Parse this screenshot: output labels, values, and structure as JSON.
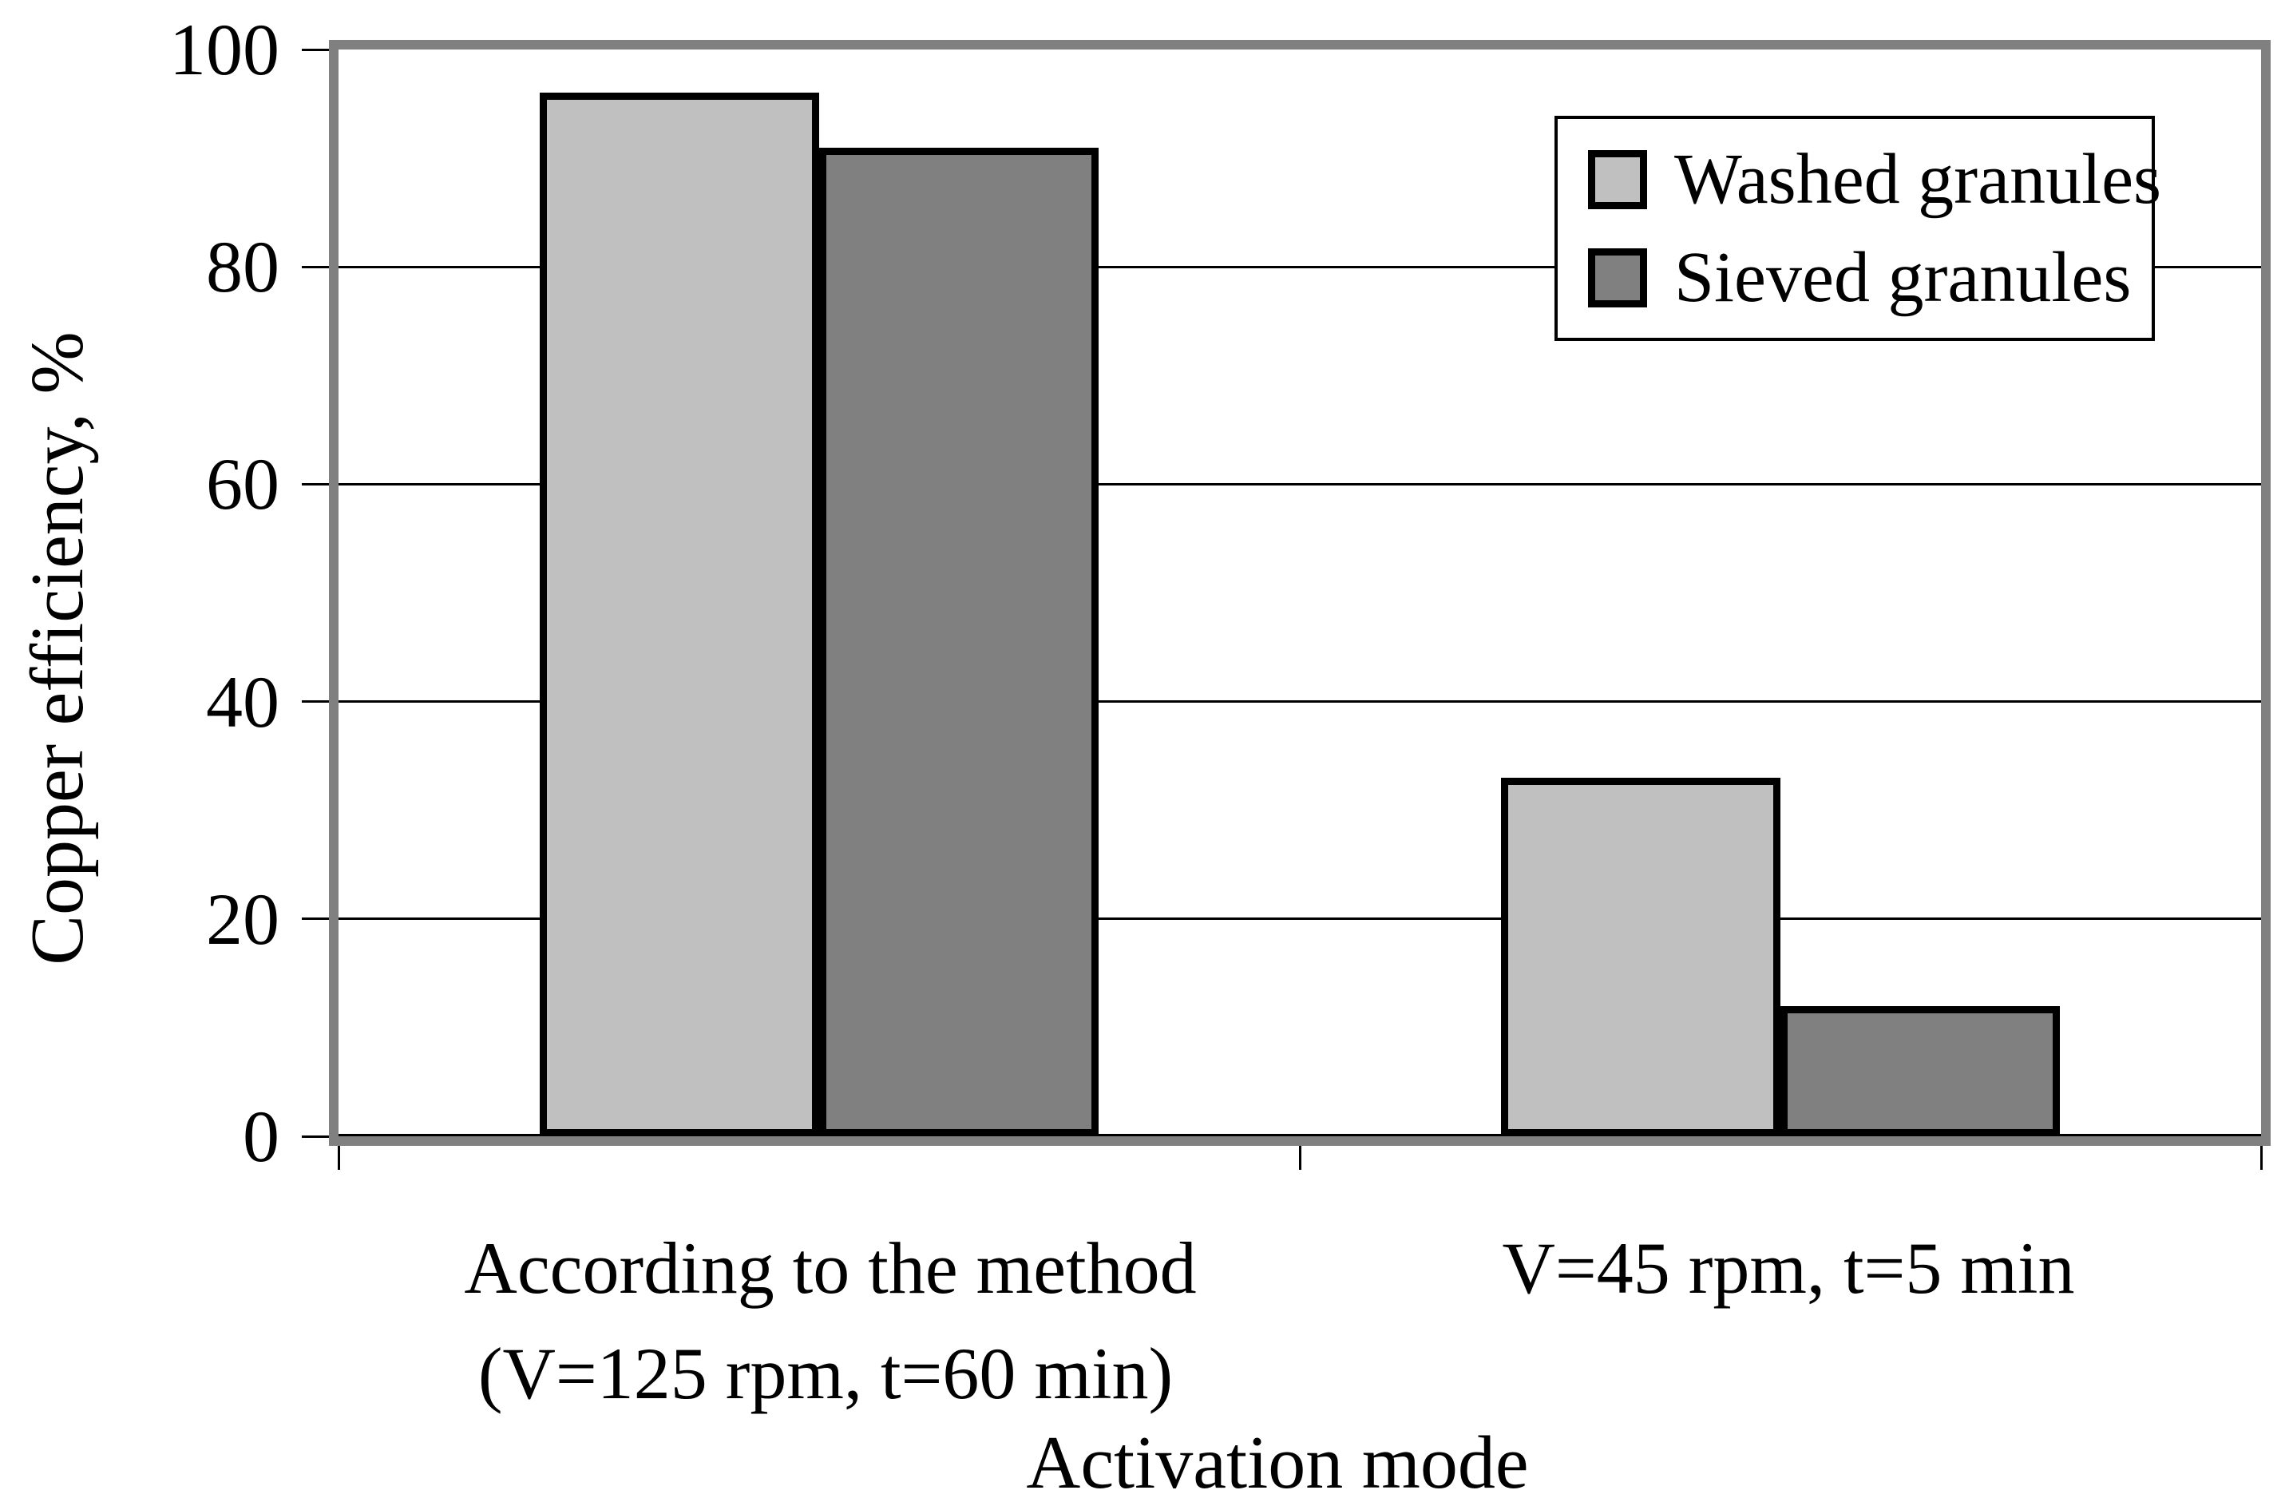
{
  "chart_data": {
    "type": "bar",
    "title": "",
    "ylabel": "Copper efficiency, %",
    "xlabel": "Activation mode",
    "ylim": [
      0,
      100
    ],
    "yticks": [
      0,
      20,
      40,
      60,
      80,
      100
    ],
    "grid": "horizontal",
    "legend_position": "top-right",
    "categories": [
      {
        "line1": "According to the method",
        "line2": "(V=125 rpm, t=60 min)"
      },
      {
        "line1": "V=45 rpm, t=5 min",
        "line2": ""
      }
    ],
    "series": [
      {
        "name": "Washed granules",
        "color": "#c0c0c0",
        "values": [
          96,
          33
        ]
      },
      {
        "name": "Sieved granules",
        "color": "#808080",
        "values": [
          91,
          12
        ]
      }
    ]
  },
  "colors": {
    "plot_border": "#808080",
    "bar_outline": "#000000",
    "gridline": "#000000",
    "background": "#ffffff"
  }
}
